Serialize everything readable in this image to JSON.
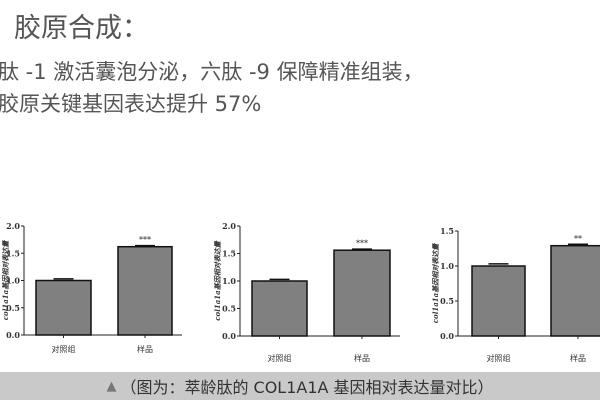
{
  "heading": {
    "title": "胶原合成：",
    "line1": "肽 -1 激活囊泡分泌，六肽 -9 保障精准组装，",
    "line2": "胶原关键基因表达提升 57%"
  },
  "caption": {
    "icon": "tree-icon",
    "text": "（图为：萃龄肽的 COL1A1A 基因相对表达量对比）"
  },
  "chart_data": [
    {
      "type": "bar",
      "ylabel": "col1a1a基因相对表达量",
      "categories": [
        "对照组",
        "样品"
      ],
      "values": [
        1.0,
        1.62
      ],
      "errors": [
        0.03,
        0.02
      ],
      "significance": [
        "",
        "***"
      ],
      "ylim": [
        0,
        2.0
      ],
      "yticks": [
        "0.0",
        "0.5",
        "1.0",
        "1.5",
        "2.0"
      ],
      "bar_color": "#808080"
    },
    {
      "type": "bar",
      "ylabel": "col1a1a基因相对表达量",
      "categories": [
        "对照组",
        "样品"
      ],
      "values": [
        1.0,
        1.56
      ],
      "errors": [
        0.03,
        0.02
      ],
      "significance": [
        "",
        "***"
      ],
      "ylim": [
        0,
        2.0
      ],
      "yticks": [
        "0.0",
        "0.5",
        "1.0",
        "1.5",
        "2.0"
      ],
      "bar_color": "#808080"
    },
    {
      "type": "bar",
      "ylabel": "col1a1a基因相对表达量",
      "categories": [
        "对照组",
        "样品"
      ],
      "values": [
        1.0,
        1.29
      ],
      "errors": [
        0.03,
        0.02
      ],
      "significance": [
        "",
        "**"
      ],
      "ylim": [
        0,
        1.5
      ],
      "yticks": [
        "0.0",
        "0.5",
        "1.0",
        "1.5"
      ],
      "bar_color": "#808080"
    }
  ]
}
